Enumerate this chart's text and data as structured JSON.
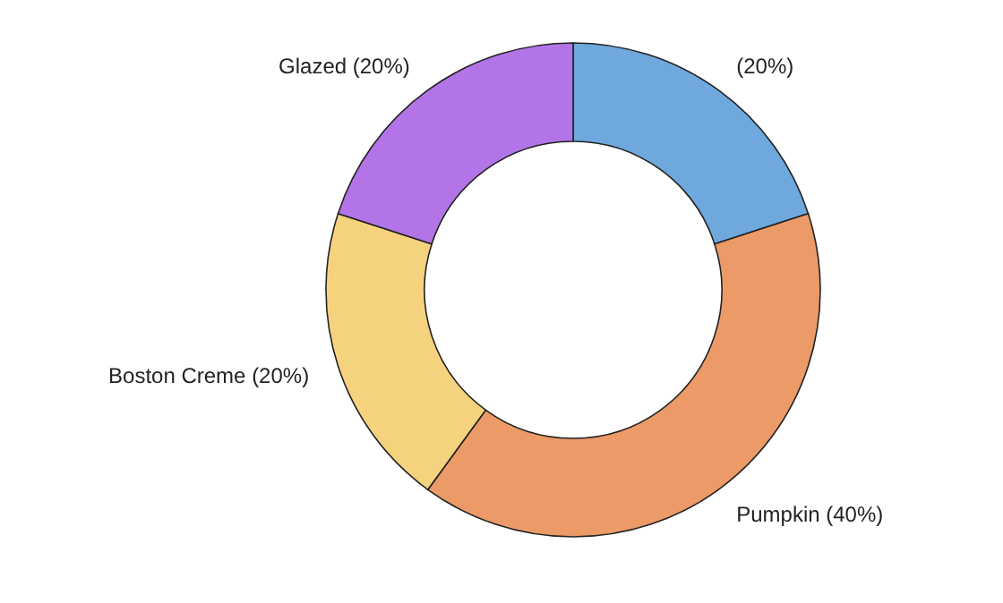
{
  "chart_data": {
    "type": "donut",
    "categories": [
      null,
      "Pumpkin",
      "Boston Creme",
      "Glazed"
    ],
    "values": [
      20,
      40,
      20,
      20
    ],
    "colors": [
      "#6fa8dc",
      "#eb9a68",
      "#f5d27e",
      "#b274e6"
    ],
    "value_labels": [
      "(20%)",
      "(40%)",
      "(20%)",
      "(20%)"
    ]
  }
}
